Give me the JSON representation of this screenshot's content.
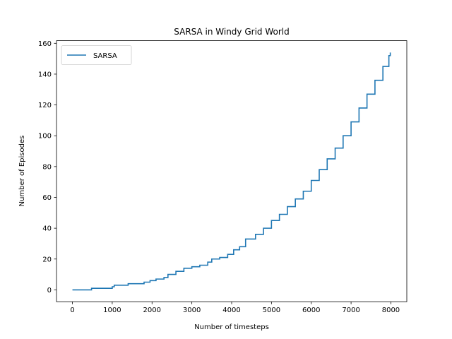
{
  "chart_data": {
    "type": "line",
    "title": "SARSA in Windy Grid World",
    "xlabel": "Number of timesteps",
    "ylabel": "Number of Episodes",
    "xlim": [
      -400,
      8400
    ],
    "ylim": [
      -7.7,
      161.7
    ],
    "xticks": [
      0,
      1000,
      2000,
      3000,
      4000,
      5000,
      6000,
      7000,
      8000
    ],
    "yticks": [
      0,
      20,
      40,
      60,
      80,
      100,
      120,
      140,
      160
    ],
    "grid": false,
    "legend_position": "upper-left",
    "series": [
      {
        "name": "SARSA",
        "color": "#1f77b4",
        "x": [
          0,
          480,
          1000,
          1050,
          1400,
          1800,
          1950,
          2100,
          2300,
          2400,
          2600,
          2800,
          3000,
          3200,
          3400,
          3500,
          3700,
          3900,
          4050,
          4200,
          4350,
          4600,
          4800,
          5000,
          5200,
          5400,
          5600,
          5800,
          6000,
          6200,
          6400,
          6600,
          6800,
          7000,
          7200,
          7400,
          7600,
          7800,
          7950,
          7985
        ],
        "y": [
          0,
          1,
          2,
          3,
          4,
          5,
          6,
          7,
          8,
          10,
          12,
          14,
          15,
          16,
          18,
          20,
          21,
          23,
          26,
          28,
          33,
          36,
          40,
          45,
          49,
          54,
          59,
          64,
          71,
          78,
          85,
          92,
          100,
          109,
          118,
          127,
          136,
          145,
          152,
          154
        ]
      }
    ]
  }
}
